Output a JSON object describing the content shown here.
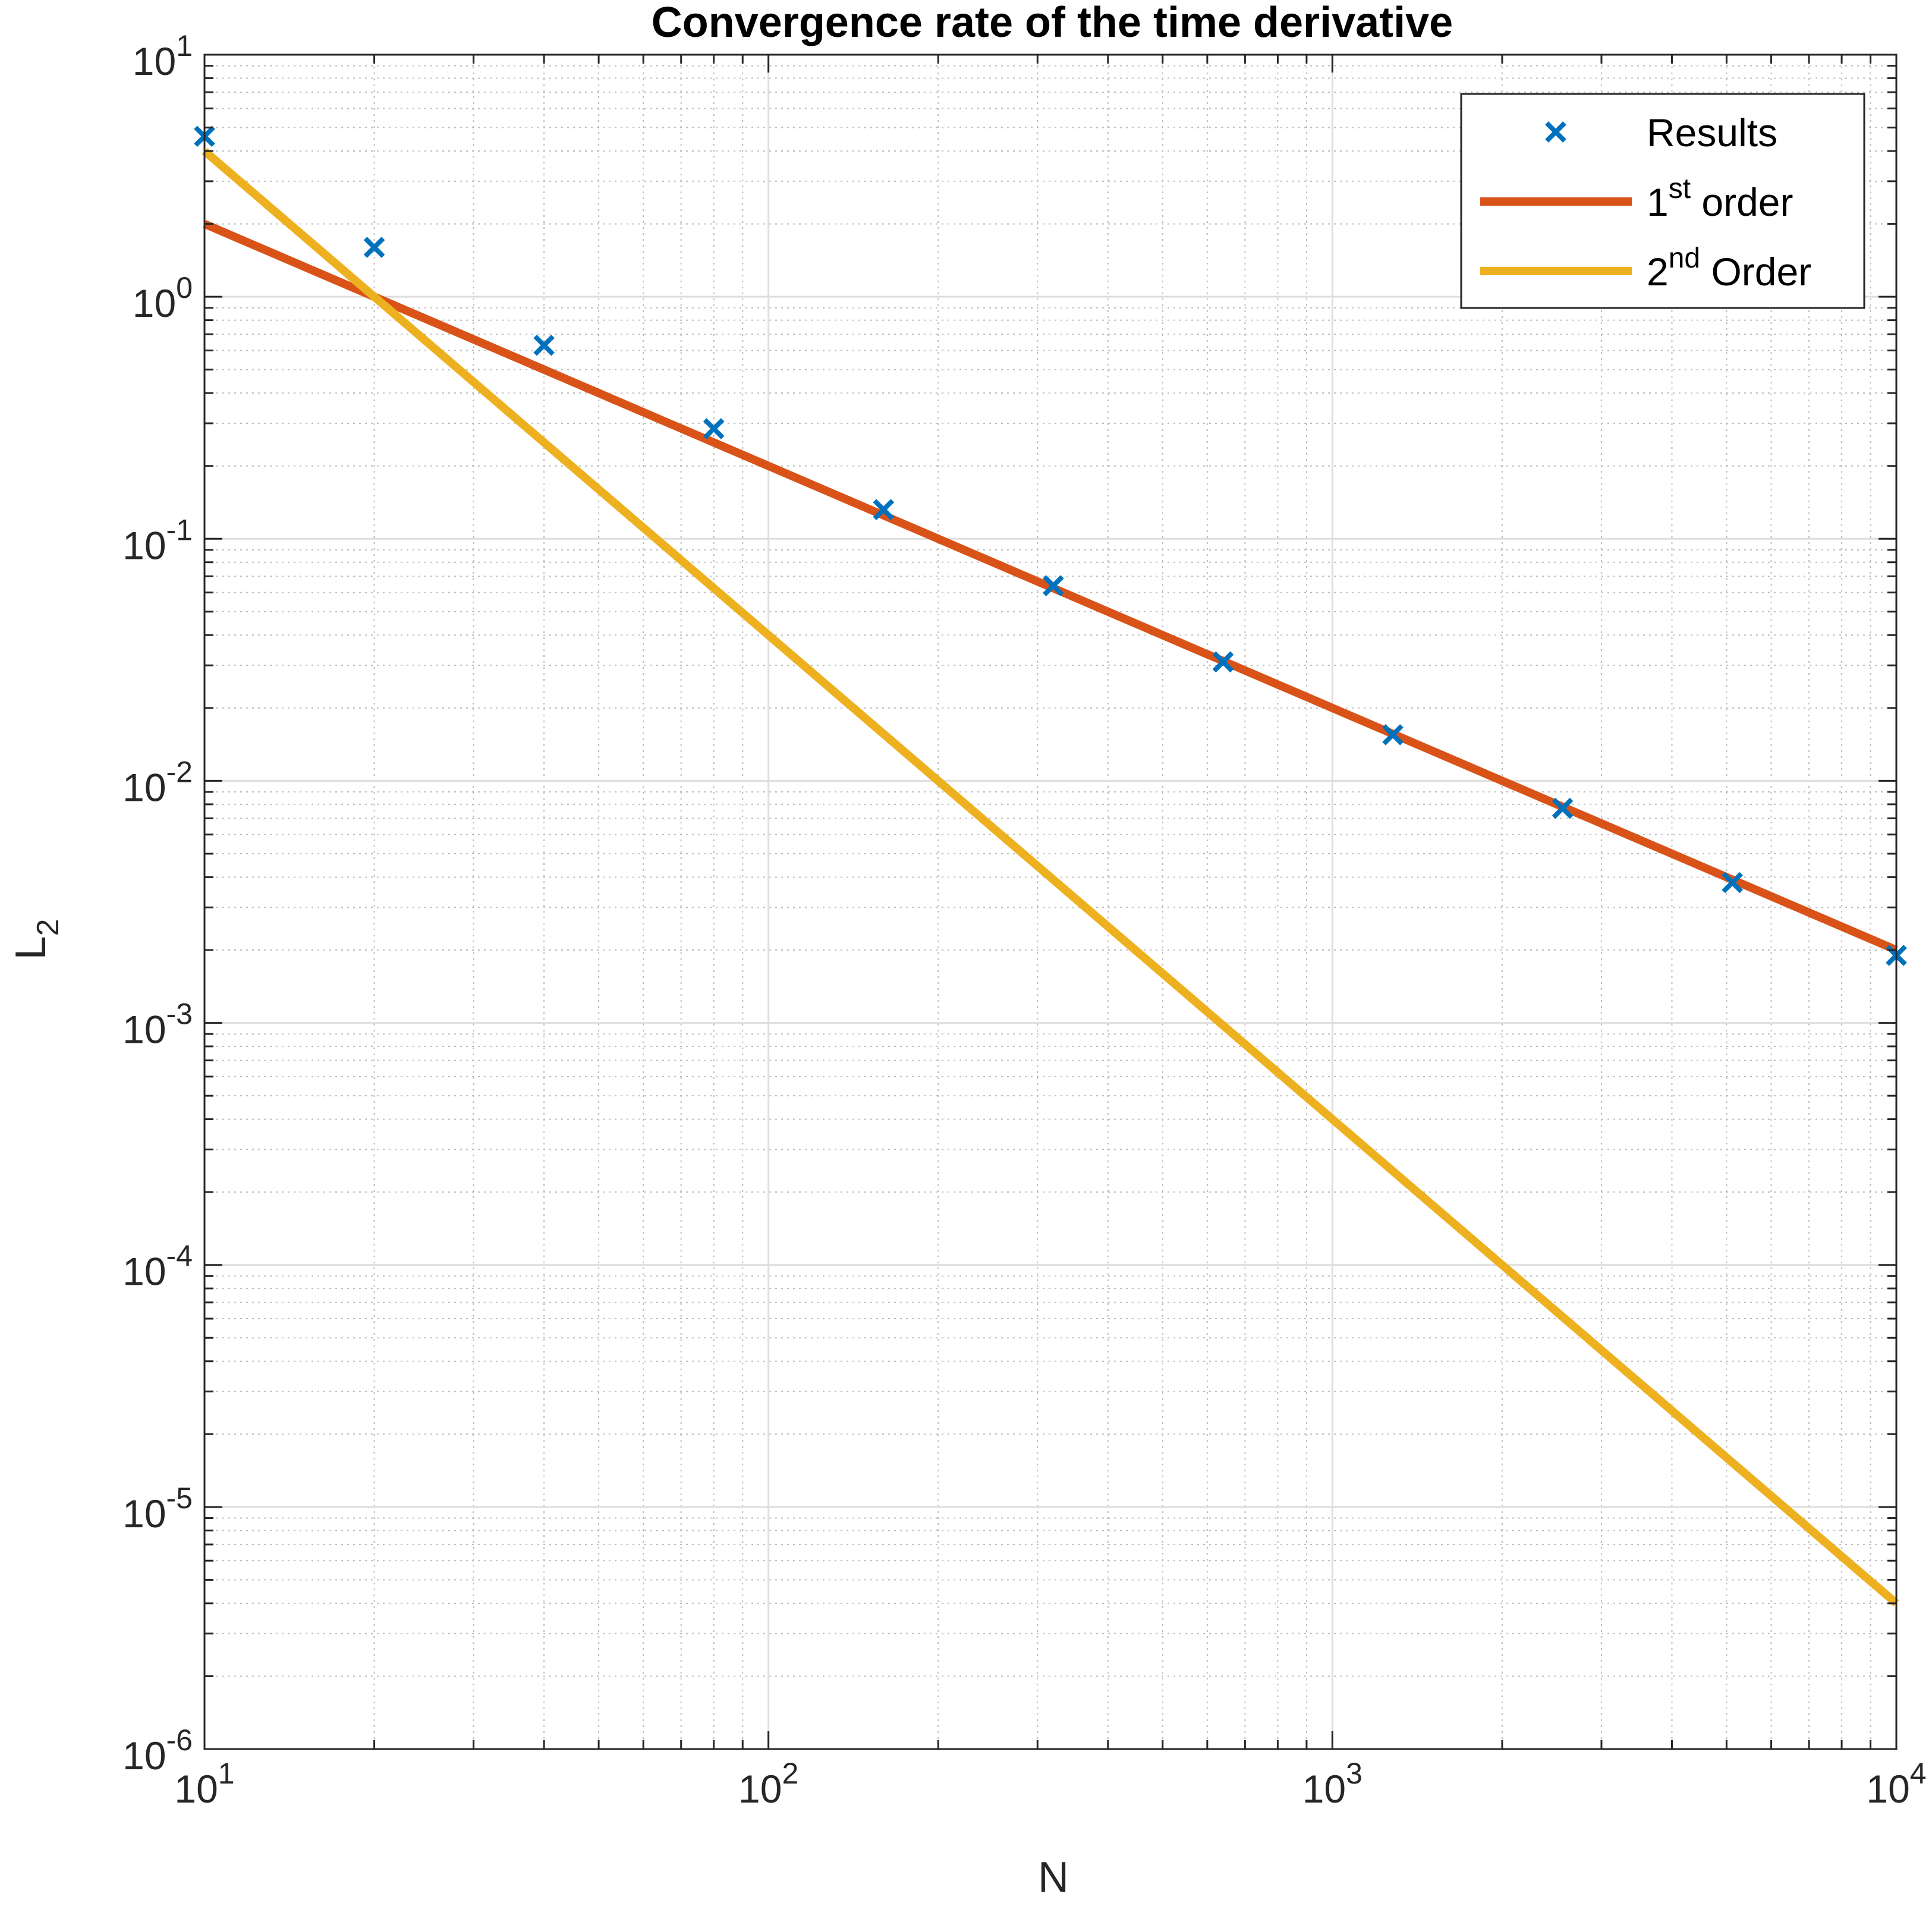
{
  "chart_data": {
    "type": "line",
    "title": "Convergence rate of the time derivative",
    "xlabel": "N",
    "ylabel": {
      "base": "L",
      "sub": "2"
    },
    "xscale": "log",
    "yscale": "log",
    "xlim": [
      10,
      10000
    ],
    "ylim": [
      1e-06,
      10
    ],
    "grid": true,
    "minor_grid": true,
    "legend_position": "top-right",
    "x_ticks": [
      {
        "value": 10,
        "base": "10",
        "exp": "1"
      },
      {
        "value": 100,
        "base": "10",
        "exp": "2"
      },
      {
        "value": 1000,
        "base": "10",
        "exp": "3"
      },
      {
        "value": 10000,
        "base": "10",
        "exp": "4"
      }
    ],
    "y_ticks": [
      {
        "value": 10,
        "base": "10",
        "exp": "1"
      },
      {
        "value": 1,
        "base": "10",
        "exp": "0"
      },
      {
        "value": 0.1,
        "base": "10",
        "exp": "-1"
      },
      {
        "value": 0.01,
        "base": "10",
        "exp": "-2"
      },
      {
        "value": 0.001,
        "base": "10",
        "exp": "-3"
      },
      {
        "value": 0.0001,
        "base": "10",
        "exp": "-4"
      },
      {
        "value": 1e-05,
        "base": "10",
        "exp": "-5"
      },
      {
        "value": 1e-06,
        "base": "10",
        "exp": "-6"
      }
    ],
    "series": [
      {
        "name": "Results",
        "label_parts": [
          "Results"
        ],
        "kind": "markers",
        "marker": "x",
        "color": "#0072bd",
        "x": [
          10,
          20,
          40,
          80,
          160,
          320,
          640,
          1280,
          2560,
          5120,
          10000
        ],
        "y": [
          4.6,
          1.6,
          0.63,
          0.285,
          0.132,
          0.064,
          0.031,
          0.0155,
          0.0077,
          0.0038,
          0.0019
        ]
      },
      {
        "name": "1st order",
        "label_parts": [
          "1",
          "st",
          " order"
        ],
        "kind": "line",
        "color": "#d95319",
        "x": [
          10,
          10000
        ],
        "y": [
          2.0,
          0.002
        ]
      },
      {
        "name": "2nd Order",
        "label_parts": [
          "2",
          "nd",
          " Order"
        ],
        "kind": "line",
        "color": "#edb120",
        "x": [
          10,
          10000
        ],
        "y": [
          4.0,
          4e-06
        ]
      }
    ]
  }
}
